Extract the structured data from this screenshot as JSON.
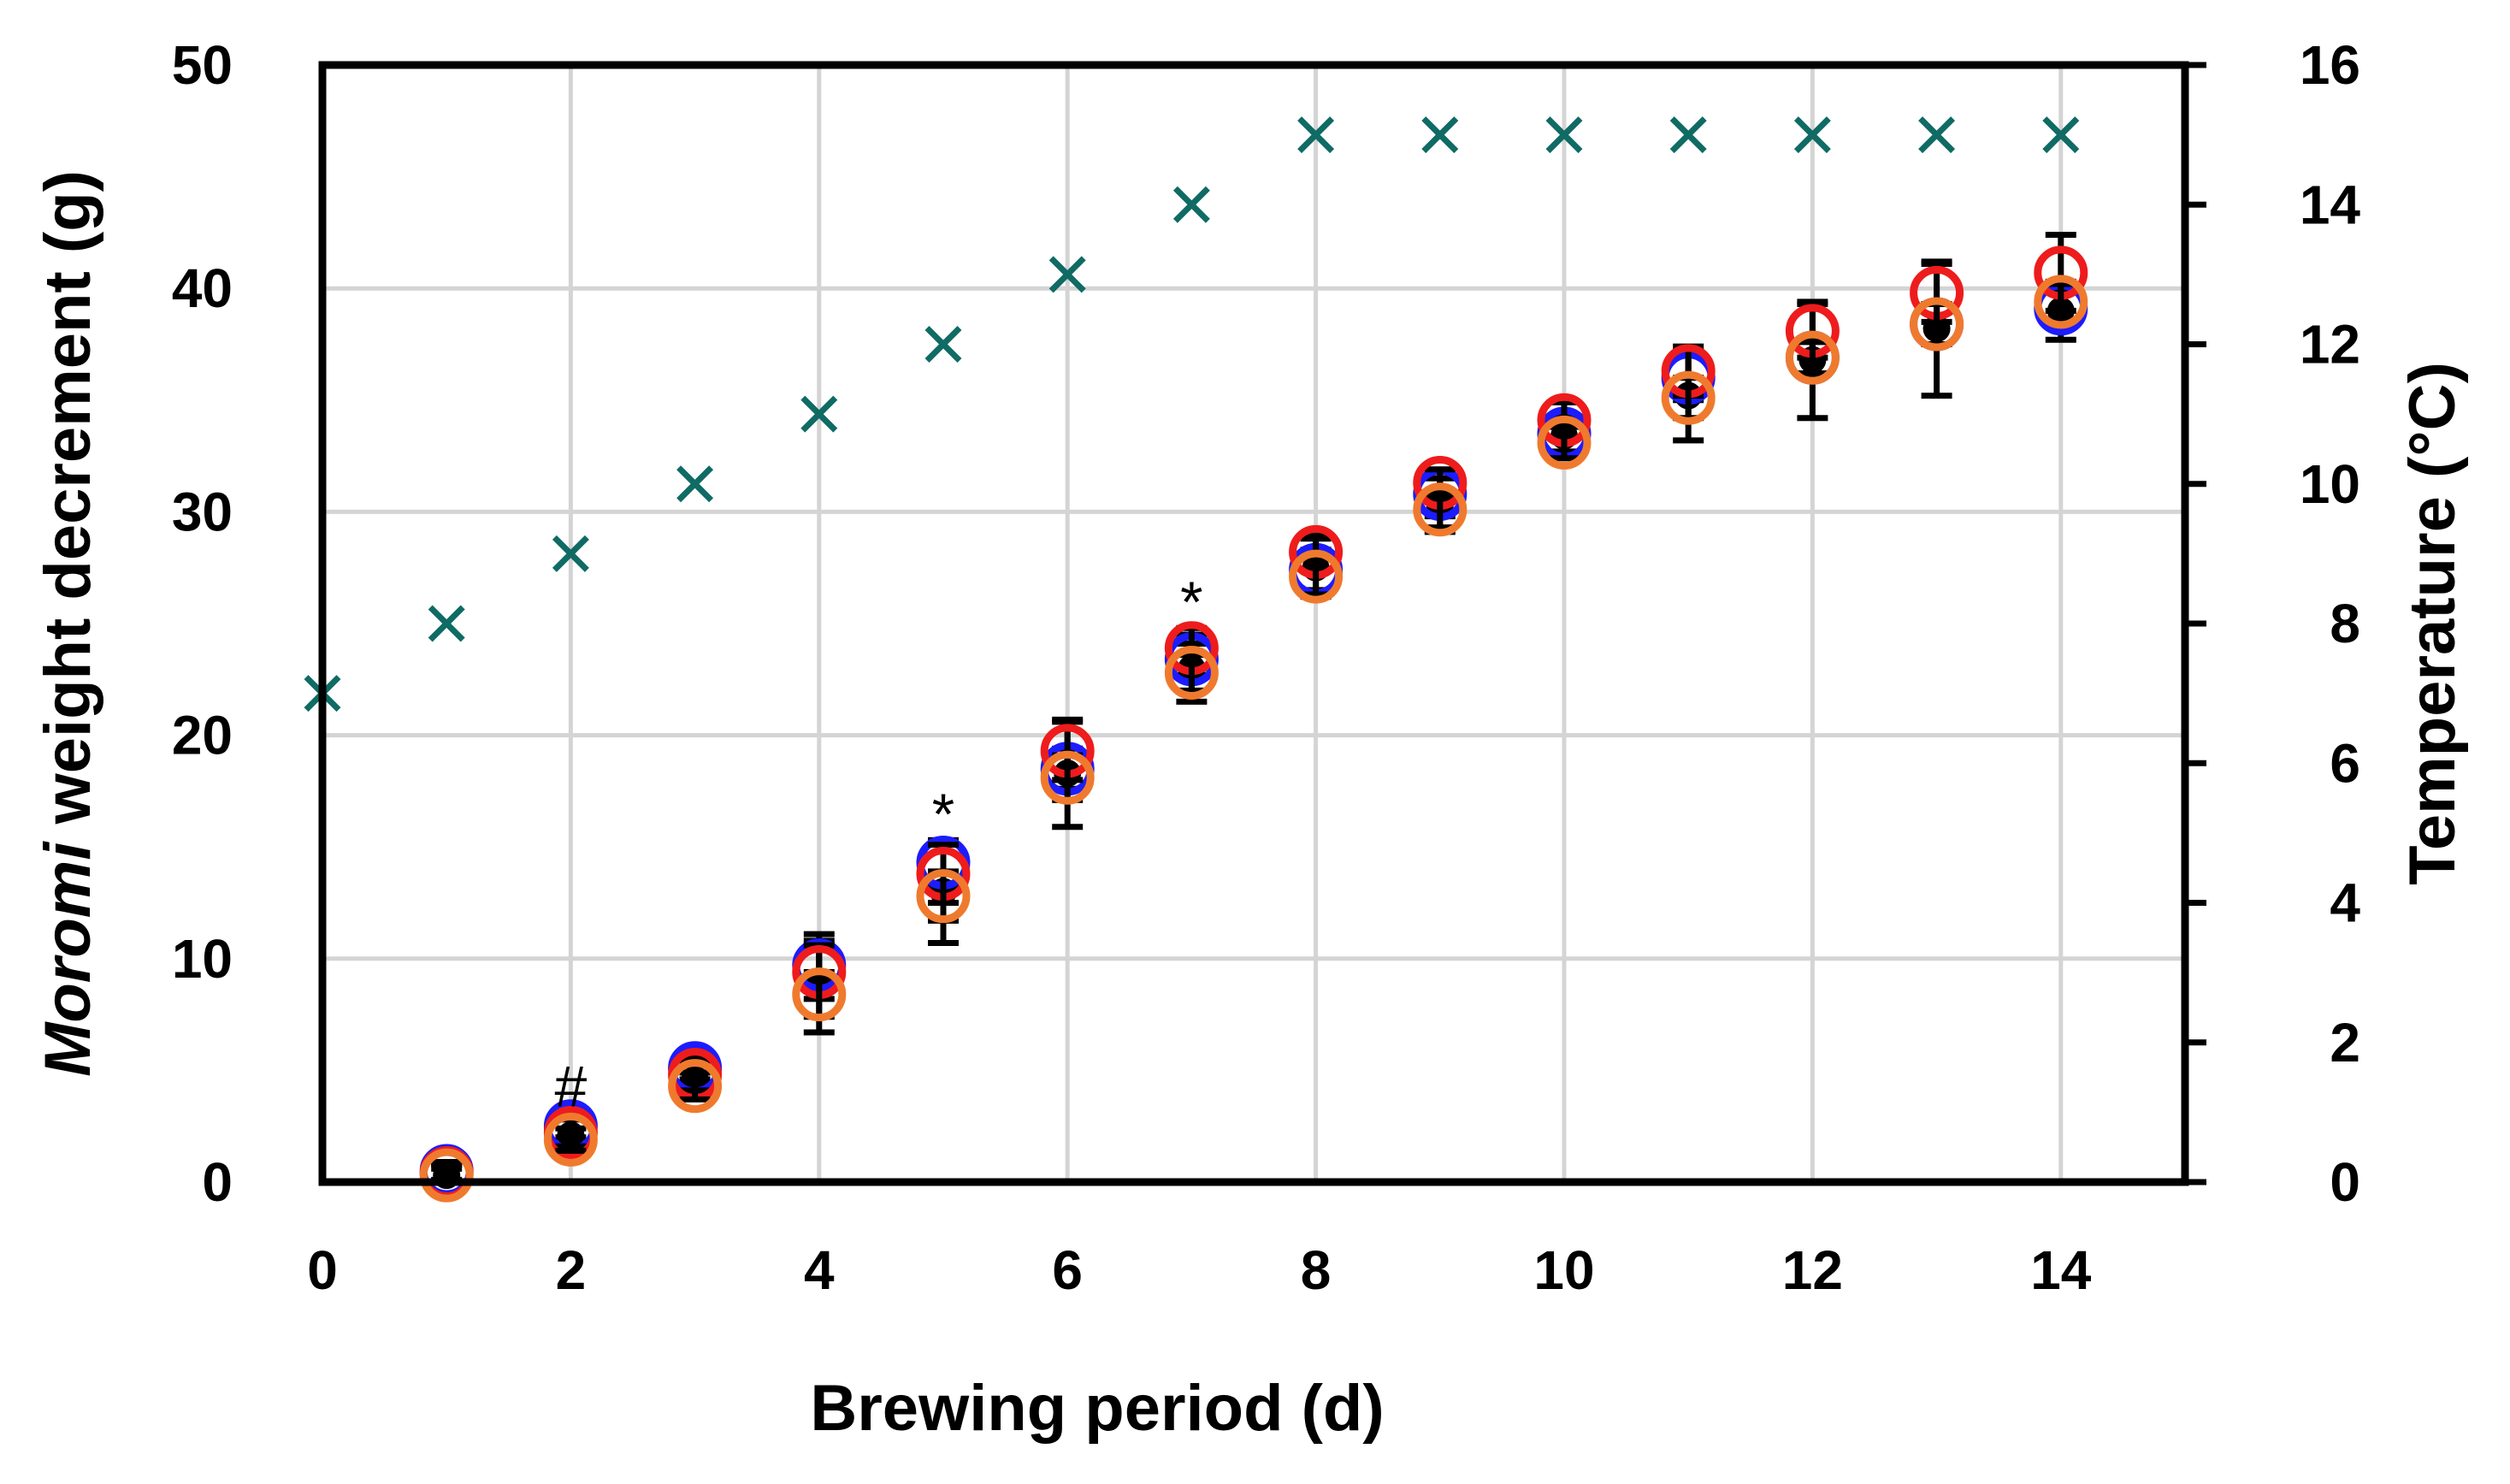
{
  "chart_data": {
    "type": "scatter",
    "xlabel": "Brewing period (d)",
    "ylabel_italic": "Moromi",
    "ylabel_rest": " weight decrement (g)",
    "y2label": "Temperature (°C)",
    "xlim": [
      0,
      15
    ],
    "ylim": [
      0,
      50
    ],
    "y2lim": [
      0,
      16
    ],
    "xticks": [
      0,
      2,
      4,
      6,
      8,
      10,
      12,
      14
    ],
    "yticks": [
      0,
      10,
      20,
      30,
      40,
      50
    ],
    "y2ticks": [
      0,
      2,
      4,
      6,
      8,
      10,
      12,
      14,
      16
    ],
    "grid": true,
    "series": [
      {
        "axis": "y2",
        "marker": "x",
        "color": "#0f6b64",
        "x": [
          0,
          1,
          2,
          3,
          4,
          5,
          6,
          7,
          8,
          9,
          10,
          11,
          12,
          13,
          14
        ],
        "values": [
          7,
          8,
          9,
          10,
          11,
          12,
          13,
          14,
          15,
          15,
          15,
          15,
          15,
          15,
          15
        ]
      },
      {
        "axis": "y",
        "marker": "filled-circle",
        "color": "#000000",
        "x": [
          1,
          2,
          3,
          4,
          5,
          6,
          7,
          8,
          9,
          10,
          11,
          12,
          13,
          14
        ],
        "values": [
          0.3,
          2.1,
          4.6,
          8.9,
          13.0,
          18.3,
          23.0,
          27.5,
          30.3,
          33.4,
          35.2,
          36.8,
          38.2,
          39.0
        ],
        "errors": [
          0.5,
          0.8,
          0.8,
          2.2,
          2.3,
          2.4,
          1.5,
          1.3,
          1.2,
          0.8,
          2.0,
          2.6,
          3.0,
          1.3
        ]
      },
      {
        "axis": "y",
        "marker": "open-circle",
        "color": "#1c1cff",
        "x": [
          1,
          2,
          3,
          4,
          5,
          6,
          7,
          8,
          9,
          10,
          11,
          12,
          13,
          14
        ],
        "values": [
          0.5,
          2.5,
          5.1,
          9.7,
          14.3,
          18.5,
          23.4,
          27.4,
          30.8,
          33.5,
          36.0,
          36.9,
          38.4,
          39.1
        ],
        "errors": [
          0.4,
          0.5,
          0.5,
          1.1,
          1.0,
          0.9,
          0.7,
          0.9,
          1.0,
          0.8,
          1.0,
          0.7,
          0.9,
          0.8
        ]
      },
      {
        "axis": "y",
        "marker": "open-circle",
        "color": "#ee1c1c",
        "x": [
          1,
          2,
          3,
          4,
          5,
          6,
          7,
          8,
          9,
          10,
          11,
          12,
          13,
          14
        ],
        "values": [
          0.4,
          2.2,
          4.8,
          9.4,
          13.8,
          19.3,
          23.9,
          28.2,
          31.3,
          34.1,
          36.3,
          38.1,
          39.8,
          40.7
        ],
        "errors": [
          0.4,
          0.6,
          0.7,
          1.2,
          1.3,
          1.3,
          0.9,
          0.8,
          0.6,
          0.8,
          1.1,
          1.2,
          1.3,
          1.7
        ]
      },
      {
        "axis": "y",
        "marker": "open-circle",
        "color": "#ef7a2e",
        "x": [
          1,
          2,
          3,
          4,
          5,
          6,
          7,
          8,
          9,
          10,
          11,
          12,
          13,
          14
        ],
        "values": [
          0.3,
          1.9,
          4.3,
          8.4,
          12.8,
          18.1,
          22.8,
          27.1,
          30.1,
          33.1,
          35.1,
          36.9,
          38.4,
          39.4
        ],
        "errors": [
          0.3,
          0.5,
          0.6,
          1.0,
          1.1,
          1.0,
          0.8,
          0.8,
          0.8,
          0.7,
          0.9,
          0.8,
          0.9,
          0.8
        ]
      }
    ],
    "annotations": [
      {
        "text": "#",
        "x": 2,
        "y": 4.3
      },
      {
        "text": "*",
        "x": 5,
        "y": 16.5
      },
      {
        "text": "*",
        "x": 7,
        "y": 26.0
      }
    ]
  }
}
